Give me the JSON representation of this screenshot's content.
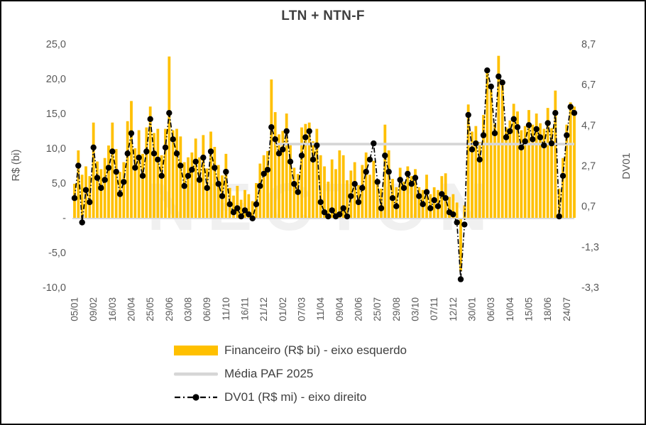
{
  "title": "LTN + NTN-F",
  "watermark": "NECTON",
  "colors": {
    "bar": "#FFC000",
    "media_line": "#D6D6D6",
    "axis_line": "#D9D9D9",
    "dv01": "#000000",
    "axis_text": "#595959",
    "title_text": "#3F3F3F",
    "watermark_gray": "#F0F0F0"
  },
  "left_axis": {
    "title": "R$ (bi)",
    "tick_labels": [
      "25,0",
      "20,0",
      "15,0",
      "10,0",
      "5,0",
      "-",
      "-5,0",
      "-10,0"
    ],
    "tick_values": [
      25,
      20,
      15,
      10,
      5,
      0,
      -5,
      -10
    ],
    "min": -10,
    "max": 25
  },
  "right_axis": {
    "title": "DV01",
    "tick_labels": [
      "8,7",
      "6,7",
      "4,7",
      "2,7",
      "0,7",
      "-1,3",
      "-3,3"
    ],
    "tick_values": [
      8.7,
      6.7,
      4.7,
      2.7,
      0.7,
      -1.3,
      -3.3
    ],
    "min": -3.3,
    "max": 8.7
  },
  "legend": {
    "items": [
      {
        "label": "Financeiro (R$ bi) - eixo esquerdo",
        "swatch": "bar"
      },
      {
        "label": "Média PAF 2025",
        "swatch": "line"
      },
      {
        "label": "DV01 (R$ mi) - eixo direito",
        "swatch": "dash-dot-marker"
      }
    ]
  },
  "chart_data": {
    "type": "bar",
    "title": "LTN + NTN-F",
    "xlabel": "",
    "left_ylabel": "R$ (bi)",
    "right_ylabel": "DV01",
    "left_ylim": [
      -10,
      25
    ],
    "right_ylim": [
      -3.3,
      8.7
    ],
    "x_tick_labels": [
      "05/01",
      "09/02",
      "16/03",
      "20/04",
      "25/05",
      "29/06",
      "03/08",
      "06/09",
      "11/10",
      "16/11",
      "21/12",
      "01/02",
      "07/03",
      "11/04",
      "09/04",
      "20/06",
      "25/07",
      "29/08",
      "03/10",
      "07/11",
      "12/12",
      "30/01",
      "06/03",
      "10/04",
      "15/05",
      "18/06",
      "24/07"
    ],
    "tick_interval": 5,
    "n_points": 133,
    "series": [
      {
        "name": "Financeiro (R$ bi) - eixo esquerdo",
        "type": "bar",
        "axis": "left",
        "values": [
          4.9,
          9.7,
          6.2,
          7.4,
          6.0,
          13.7,
          8.1,
          7.0,
          8.6,
          10.4,
          13.7,
          9.9,
          6.6,
          8.0,
          13.9,
          16.8,
          10.0,
          12.6,
          9.2,
          13.0,
          16.0,
          12.2,
          12.8,
          9.0,
          12.8,
          23.2,
          12.6,
          12.8,
          11.7,
          8.0,
          8.7,
          9.4,
          11.4,
          8.7,
          11.9,
          7.1,
          12.4,
          10.2,
          7.6,
          6.1,
          9.2,
          4.3,
          3.2,
          4.6,
          2.6,
          4.0,
          3.4,
          2.4,
          5.0,
          7.8,
          9.0,
          9.6,
          19.9,
          15.2,
          12.0,
          12.5,
          15.0,
          10.6,
          7.2,
          6.3,
          13.0,
          13.5,
          13.7,
          11.0,
          12.8,
          9.0,
          7.4,
          5.2,
          8.4,
          7.0,
          9.7,
          9.0,
          5.4,
          6.8,
          8.0,
          4.7,
          7.6,
          9.4,
          6.2,
          8.2,
          5.4,
          4.2,
          13.4,
          9.7,
          5.6,
          4.4,
          7.2,
          5.2,
          7.4,
          6.0,
          7.0,
          4.4,
          4.0,
          6.2,
          3.4,
          4.4,
          4.0,
          6.0,
          6.4,
          3.0,
          3.4,
          2.2,
          -7.7,
          1.8,
          16.3,
          12.4,
          13.2,
          10.9,
          14.8,
          21.0,
          18.4,
          13.5,
          23.3,
          19.8,
          13.0,
          14.0,
          16.4,
          15.3,
          12.6,
          13.2,
          15.5,
          13.4,
          15.0,
          13.6,
          12.8,
          15.8,
          12.9,
          18.3,
          4.2,
          8.6,
          13.4,
          16.6,
          16.0
        ]
      },
      {
        "name": "Média PAF 2025",
        "type": "line-constant",
        "axis": "left",
        "value": 10.6,
        "start_index": 53
      },
      {
        "name": "DV01 (R$ mi) - eixo direito",
        "type": "line",
        "axis": "right",
        "values": [
          1.1,
          2.7,
          -0.1,
          1.5,
          0.9,
          3.6,
          2.1,
          1.6,
          2.0,
          2.6,
          3.4,
          2.4,
          1.3,
          1.9,
          3.3,
          4.3,
          2.6,
          3.1,
          2.2,
          3.4,
          5.0,
          3.3,
          3.0,
          2.2,
          3.6,
          5.3,
          4.0,
          3.3,
          2.7,
          1.7,
          2.2,
          2.5,
          2.9,
          2.0,
          3.1,
          1.6,
          3.4,
          2.6,
          1.8,
          1.2,
          2.4,
          0.8,
          0.4,
          0.6,
          0.2,
          0.5,
          0.3,
          0.1,
          0.8,
          1.7,
          2.3,
          2.5,
          4.6,
          4.0,
          3.3,
          3.5,
          4.4,
          2.9,
          1.8,
          1.4,
          3.2,
          4.1,
          4.4,
          3.0,
          3.7,
          0.9,
          0.4,
          0.2,
          0.5,
          0.2,
          0.3,
          0.6,
          0.2,
          1.2,
          1.8,
          0.9,
          1.6,
          2.4,
          3.0,
          3.8,
          1.9,
          0.6,
          3.2,
          2.4,
          1.1,
          0.7,
          2.0,
          1.6,
          2.3,
          1.8,
          2.1,
          1.2,
          0.8,
          1.4,
          0.6,
          1.0,
          0.7,
          1.3,
          1.1,
          0.4,
          0.3,
          -0.1,
          -2.9,
          -0.2,
          5.2,
          3.5,
          3.8,
          3.0,
          4.2,
          7.4,
          6.6,
          4.3,
          7.1,
          6.8,
          4.1,
          4.4,
          5.0,
          4.6,
          3.6,
          3.9,
          4.7,
          4.0,
          4.5,
          4.1,
          3.7,
          4.8,
          3.8,
          5.3,
          0.2,
          2.2,
          4.2,
          5.6,
          5.3
        ]
      }
    ]
  }
}
